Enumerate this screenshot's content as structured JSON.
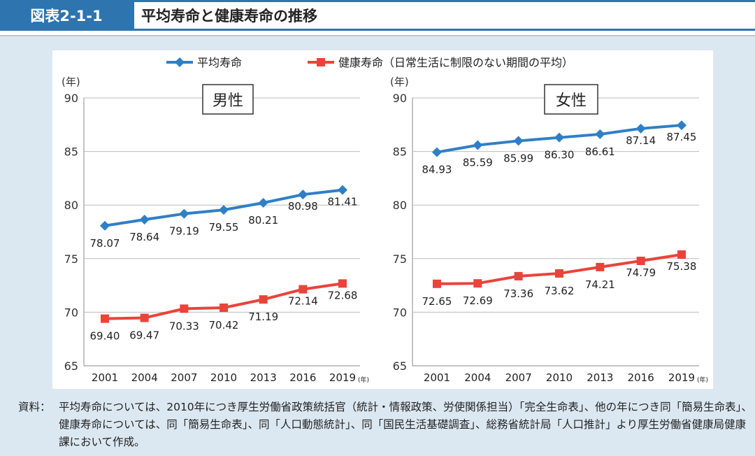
{
  "header": {
    "figure_no": "図表2-1-1",
    "title": "平均寿命と健康寿命の推移"
  },
  "note": {
    "label": "資料：",
    "text": "平均寿命については、2010年につき厚生労働省政策統括官（統計・情報政策、労使関係担当）「完全生命表」、他の年につき同「簡易生命表」、健康寿命については、同「簡易生命表」、同「人口動態統計」、同「国民生活基礎調査」、総務省統計局「人口推計」より厚生労働省健康局健康課において作成。"
  },
  "chart_data": {
    "type": "line",
    "legend": [
      {
        "name": "平均寿命",
        "color": "#2f7fc6",
        "marker": "diamond"
      },
      {
        "name": "健康寿命（日常生活に制限のない期間の平均）",
        "color": "#e8443a",
        "marker": "square"
      }
    ],
    "legend_position": "top",
    "x": [
      "2001",
      "2004",
      "2007",
      "2010",
      "2013",
      "2016",
      "2019"
    ],
    "x_unit": "(年)",
    "y_unit": "(年)",
    "ylim": [
      65,
      90
    ],
    "yticks": [
      65,
      70,
      75,
      80,
      85,
      90
    ],
    "panels": [
      {
        "title": "男性",
        "series": [
          {
            "name": "平均寿命",
            "values": [
              78.07,
              78.64,
              79.19,
              79.55,
              80.21,
              80.98,
              81.41
            ]
          },
          {
            "name": "健康寿命",
            "values": [
              69.4,
              69.47,
              70.33,
              70.42,
              71.19,
              72.14,
              72.68
            ]
          }
        ]
      },
      {
        "title": "女性",
        "series": [
          {
            "name": "平均寿命",
            "values": [
              84.93,
              85.59,
              85.99,
              86.3,
              86.61,
              87.14,
              87.45
            ]
          },
          {
            "name": "健康寿命",
            "values": [
              72.65,
              72.69,
              73.36,
              73.62,
              74.21,
              74.79,
              75.38
            ]
          }
        ]
      }
    ]
  }
}
